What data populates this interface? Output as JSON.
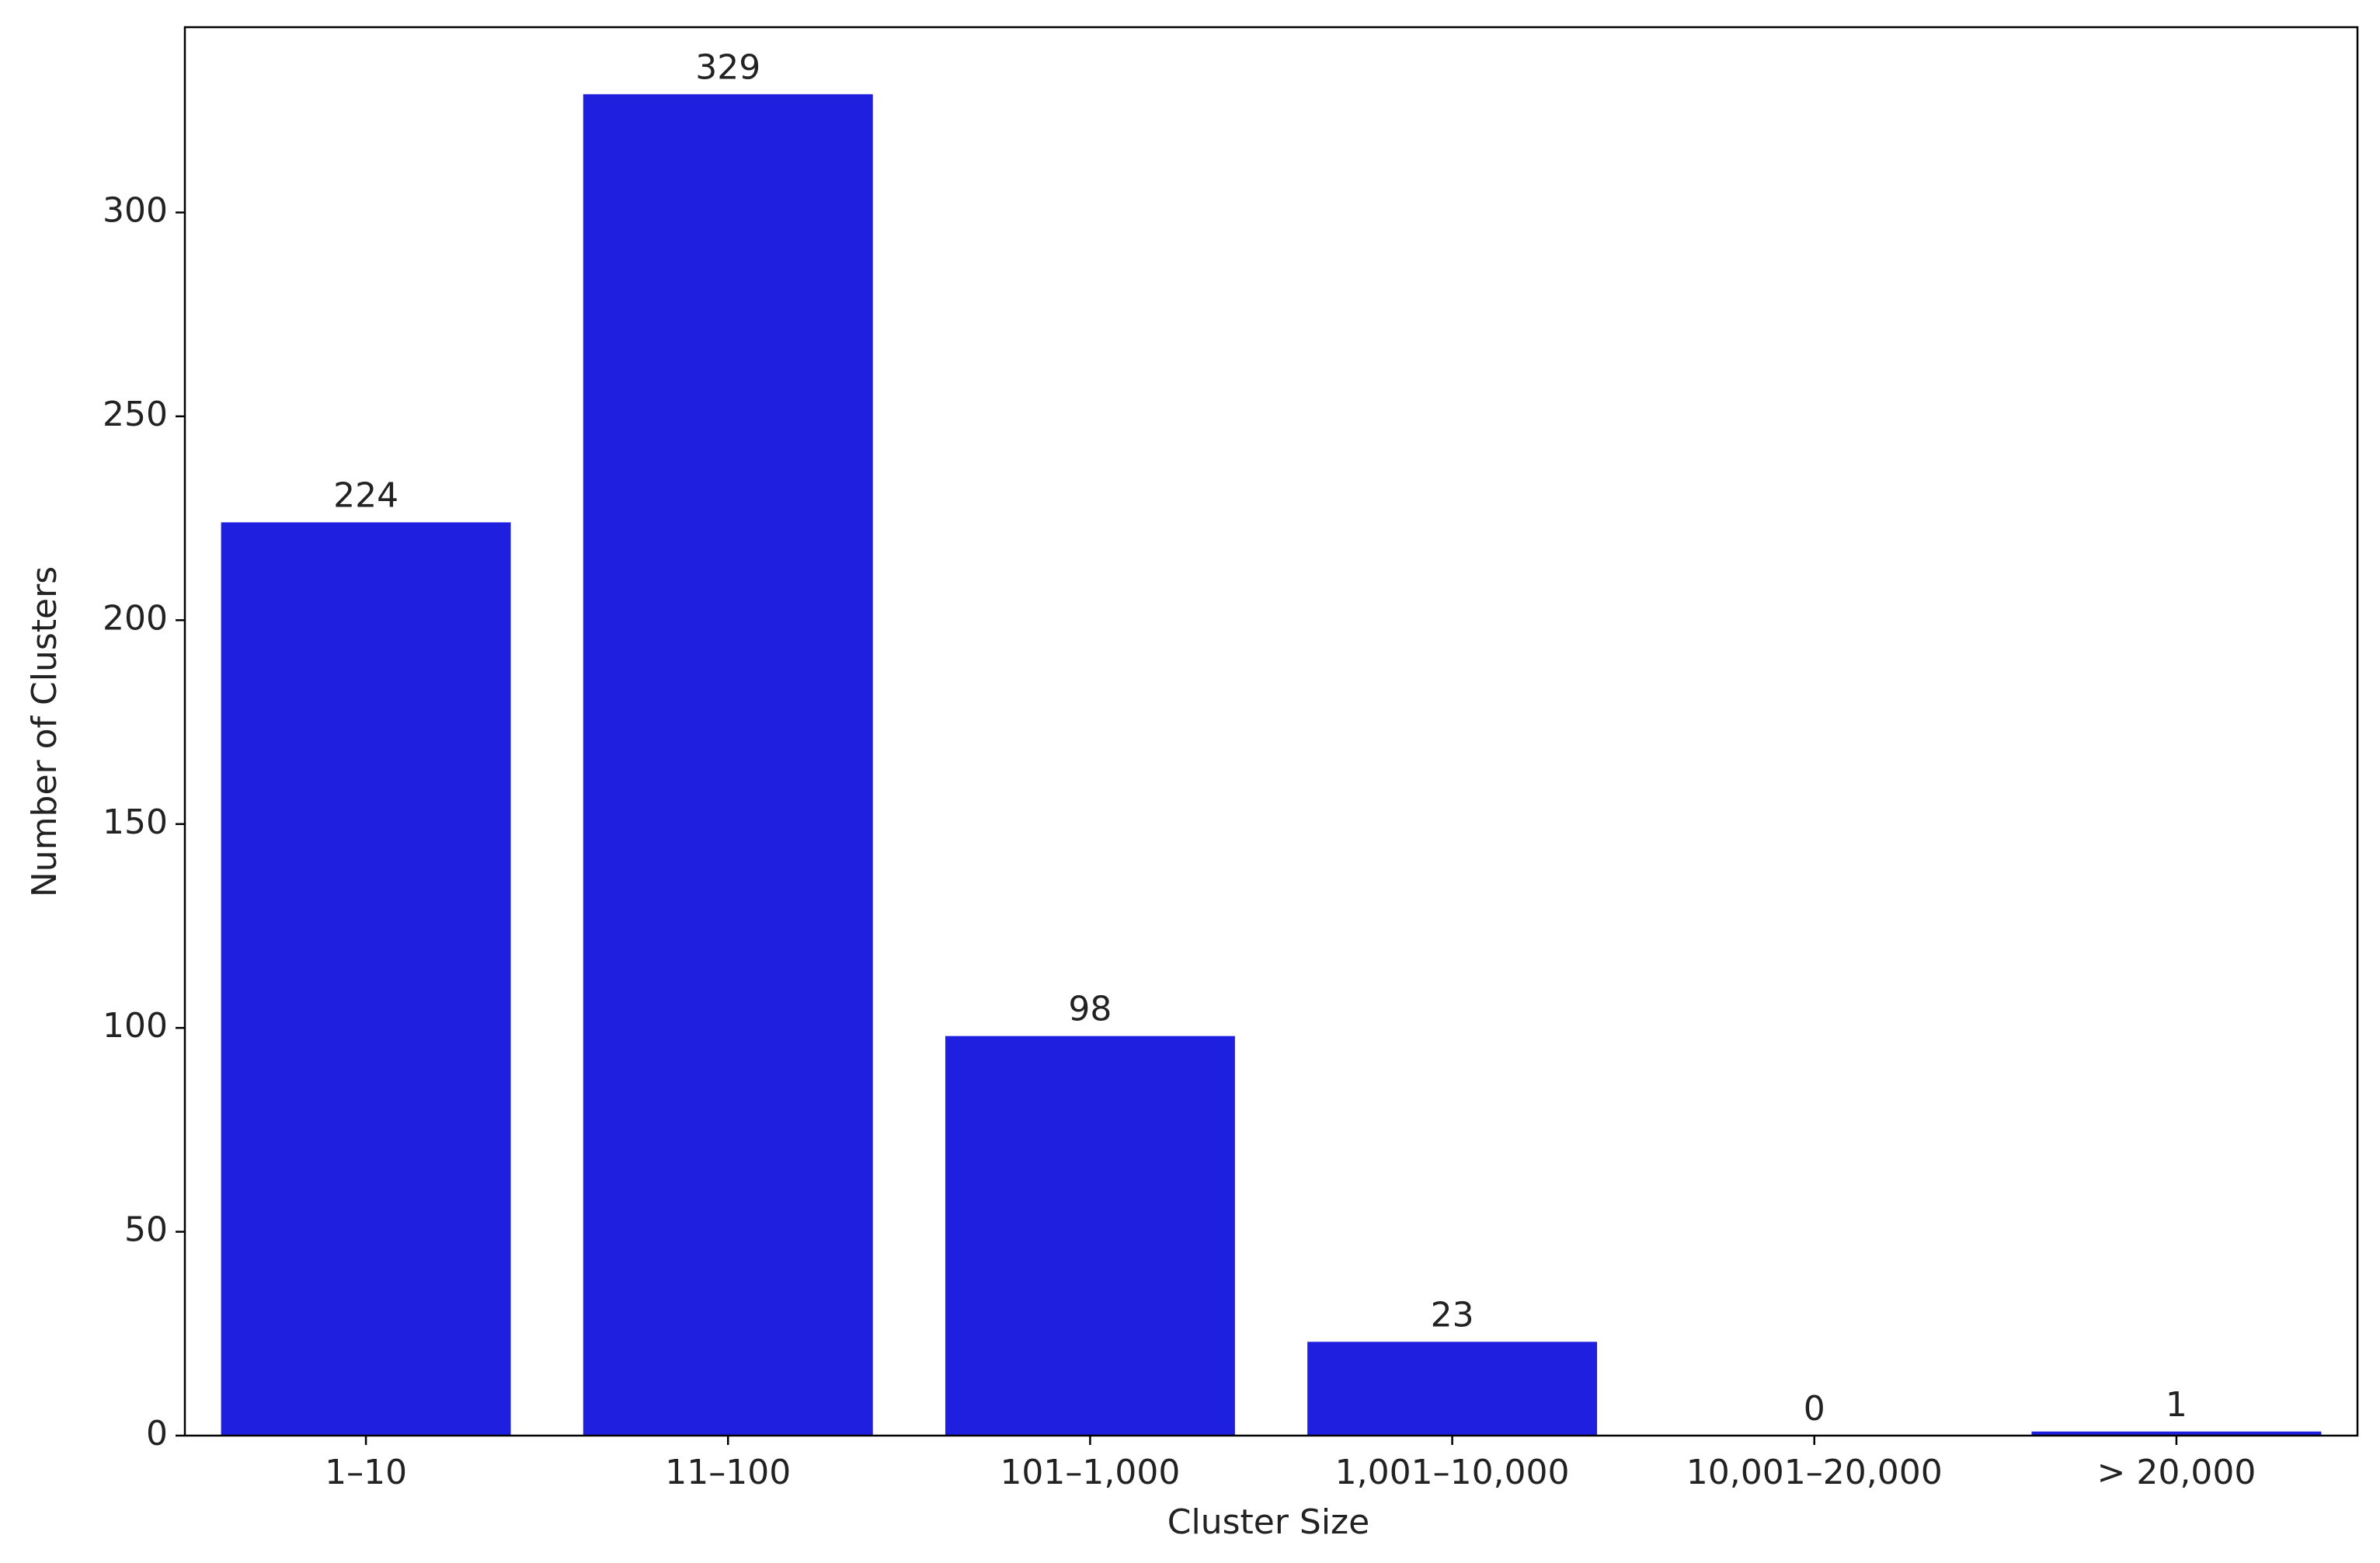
{
  "chart_data": {
    "type": "bar",
    "x_label": "Cluster Size",
    "y_label": "Number of Clusters",
    "categories": [
      "1–10",
      "11–100",
      "101–1,000",
      "1,001–10,000",
      "10,001–20,000",
      "> 20,000"
    ],
    "values": [
      224,
      329,
      98,
      23,
      0,
      1
    ],
    "color": "#1f1fe0",
    "ylim": [
      0,
      345.45
    ],
    "yticks": [
      0,
      50,
      100,
      150,
      200,
      250,
      300
    ],
    "grid": false
  }
}
